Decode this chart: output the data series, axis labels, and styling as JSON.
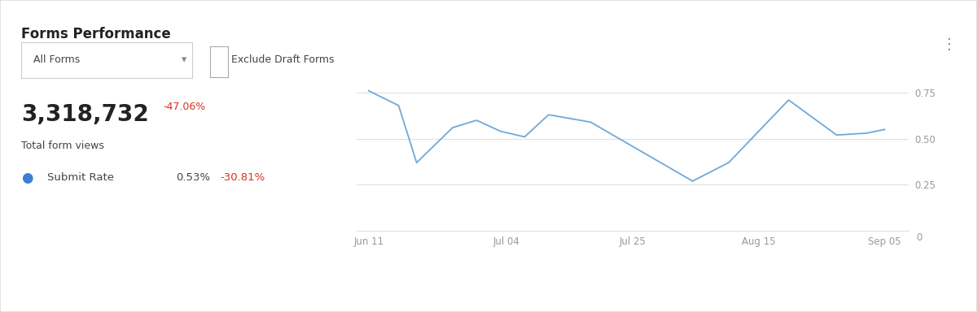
{
  "title": "Forms Performance",
  "dropdown_label": "All Forms",
  "checkbox_label": "Exclude Draft Forms",
  "total_views": "3,318,732",
  "total_views_change": "-47.06%",
  "total_views_label": "Total form views",
  "submit_rate_label": "Submit Rate",
  "submit_rate_value": "0.53%",
  "submit_rate_change": "-30.81%",
  "submit_rate_dot_color": "#3b7fd4",
  "line_color": "#6fa8d8",
  "bg_color": "#ffffff",
  "x_labels": [
    "Jun 11",
    "Jul 04",
    "Jul 25",
    "Aug 15",
    "Sep 05"
  ],
  "x_positions": [
    0,
    23,
    44,
    65,
    86
  ],
  "y_values": [
    0.76,
    0.68,
    0.37,
    0.56,
    0.6,
    0.54,
    0.51,
    0.63,
    0.59,
    0.27,
    0.37,
    0.71,
    0.52,
    0.53,
    0.55
  ],
  "x_data": [
    0,
    5,
    8,
    14,
    18,
    22,
    26,
    30,
    37,
    54,
    60,
    70,
    78,
    83,
    86
  ],
  "yticks": [
    0.25,
    0.5,
    0.75
  ],
  "ylim": [
    0,
    0.88
  ],
  "xlim": [
    -2,
    90
  ],
  "grid_color": "#e0e0e0",
  "axis_label_color": "#999999",
  "text_dark": "#222222",
  "text_red": "#d93025",
  "text_gray": "#888888",
  "text_medium": "#444444"
}
